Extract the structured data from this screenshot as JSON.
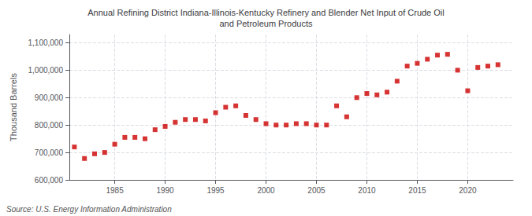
{
  "chart_data": {
    "type": "scatter",
    "title": "Annual Refining District Indiana-Illinois-Kentucky Refinery and Blender Net Input of Crude Oil\nand Petroleum Products",
    "ylabel": "Thousand Barrels",
    "annotations": [
      "Source: U.S. Energy Information Administration"
    ],
    "color": "#cc0000",
    "marker": "square",
    "grid": true,
    "xlim": [
      1980.5,
      2024.5
    ],
    "xticks": [
      1985,
      1990,
      1995,
      2000,
      2005,
      2010,
      2015,
      2020
    ],
    "ylim": [
      600000,
      1130000
    ],
    "yticks": [
      {
        "value": 600000,
        "label": "600,000"
      },
      {
        "value": 700000,
        "label": "700,000"
      },
      {
        "value": 800000,
        "label": "800,000"
      },
      {
        "value": 900000,
        "label": "900,000"
      },
      {
        "value": 1000000,
        "label": "1,000,000"
      },
      {
        "value": 1100000,
        "label": "1,100,000"
      }
    ],
    "x": [
      1981,
      1982,
      1983,
      1984,
      1985,
      1986,
      1987,
      1988,
      1989,
      1990,
      1991,
      1992,
      1993,
      1994,
      1995,
      1996,
      1997,
      1998,
      1999,
      2000,
      2001,
      2002,
      2003,
      2004,
      2005,
      2006,
      2007,
      2008,
      2009,
      2010,
      2011,
      2012,
      2013,
      2014,
      2015,
      2016,
      2017,
      2018,
      2019,
      2020,
      2021,
      2022,
      2023
    ],
    "values": [
      720000,
      678000,
      695000,
      700000,
      730000,
      755000,
      755000,
      750000,
      783000,
      795000,
      810000,
      820000,
      820000,
      815000,
      845000,
      865000,
      870000,
      835000,
      820000,
      805000,
      800000,
      800000,
      805000,
      805000,
      800000,
      800000,
      870000,
      830000,
      900000,
      915000,
      910000,
      920000,
      960000,
      1015000,
      1025000,
      1040000,
      1055000,
      1058000,
      1000000,
      925000,
      1010000,
      1015000,
      1020000
    ]
  }
}
